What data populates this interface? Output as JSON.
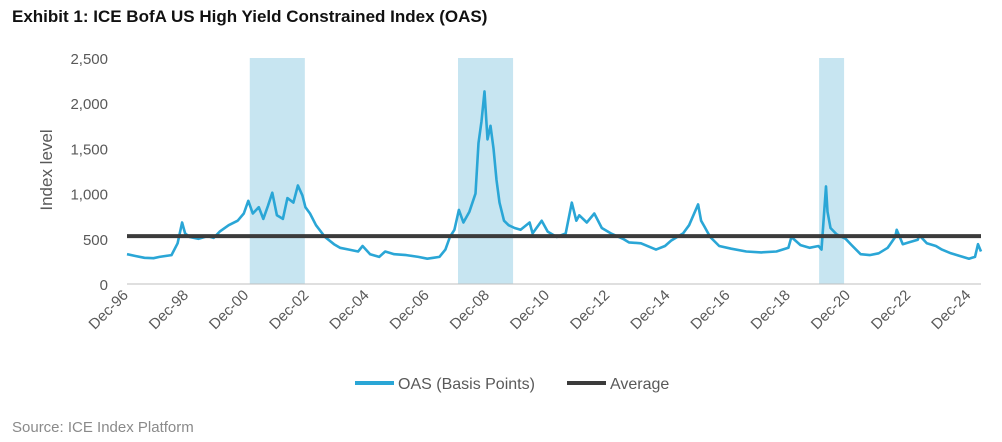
{
  "header": {
    "title": "Exhibit 1: ICE BofA US High Yield Constrained Index (OAS)"
  },
  "footer": {
    "source": "Source: ICE Index Platform"
  },
  "colors": {
    "series": "#2aa6d6",
    "average": "#3b3b3b",
    "shade": "#c7e5f1",
    "axis_text": "#595959"
  },
  "chart_data": {
    "type": "line",
    "title": "Exhibit 1: ICE BofA US High Yield Constrained Index (OAS)",
    "xlabel": "",
    "ylabel": "Index level",
    "ylim": [
      0,
      2500
    ],
    "xlim": [
      1996.92,
      2025.3
    ],
    "yticks": [
      0,
      500,
      1000,
      1500,
      2000,
      2500
    ],
    "ytick_labels": [
      "0",
      "500",
      "1,000",
      "1,500",
      "2,000",
      "2,500"
    ],
    "xticks": [
      1996.92,
      1998.92,
      2000.92,
      2002.92,
      2004.92,
      2006.92,
      2008.92,
      2010.92,
      2012.92,
      2014.92,
      2016.92,
      2018.92,
      2020.92,
      2022.92,
      2024.92
    ],
    "xtick_labels": [
      "Dec-96",
      "Dec-98",
      "Dec-00",
      "Dec-02",
      "Dec-04",
      "Dec-06",
      "Dec-08",
      "Dec-10",
      "Dec-12",
      "Dec-14",
      "Dec-16",
      "Dec-18",
      "Dec-20",
      "Dec-22",
      "Dec-24"
    ],
    "shaded_periods": [
      [
        2001.0,
        2002.83
      ],
      [
        2007.92,
        2009.75
      ],
      [
        2019.92,
        2020.75
      ]
    ],
    "average": 530,
    "legend": {
      "position": "bottom",
      "entries": [
        "OAS (Basis Points)",
        "Average"
      ]
    },
    "series": [
      {
        "name": "OAS (Basis Points)",
        "x": [
          1996.92,
          1997.2,
          1997.5,
          1997.8,
          1998.0,
          1998.4,
          1998.6,
          1998.75,
          1998.85,
          1999.0,
          1999.3,
          1999.6,
          1999.8,
          2000.0,
          2000.3,
          2000.6,
          2000.8,
          2000.95,
          2001.1,
          2001.3,
          2001.45,
          2001.6,
          2001.75,
          2001.9,
          2002.1,
          2002.25,
          2002.45,
          2002.6,
          2002.75,
          2002.85,
          2003.0,
          2003.2,
          2003.5,
          2003.8,
          2004.0,
          2004.3,
          2004.6,
          2004.75,
          2005.0,
          2005.3,
          2005.5,
          2005.8,
          2006.2,
          2006.6,
          2006.9,
          2007.1,
          2007.3,
          2007.5,
          2007.65,
          2007.8,
          2007.95,
          2008.1,
          2008.3,
          2008.5,
          2008.6,
          2008.7,
          2008.8,
          2008.9,
          2009.0,
          2009.1,
          2009.2,
          2009.3,
          2009.45,
          2009.6,
          2009.8,
          2010.0,
          2010.3,
          2010.4,
          2010.7,
          2010.9,
          2011.2,
          2011.5,
          2011.7,
          2011.85,
          2011.95,
          2012.2,
          2012.45,
          2012.7,
          2013.0,
          2013.4,
          2013.6,
          2014.0,
          2014.5,
          2014.8,
          2015.0,
          2015.4,
          2015.6,
          2015.9,
          2016.0,
          2016.1,
          2016.3,
          2016.6,
          2017.0,
          2017.5,
          2018.0,
          2018.5,
          2018.9,
          2019.0,
          2019.3,
          2019.6,
          2019.9,
          2020.0,
          2020.15,
          2020.2,
          2020.3,
          2020.5,
          2020.8,
          2021.0,
          2021.3,
          2021.6,
          2021.9,
          2022.2,
          2022.45,
          2022.5,
          2022.7,
          2022.9,
          2023.2,
          2023.25,
          2023.5,
          2023.8,
          2024.0,
          2024.3,
          2024.6,
          2024.9,
          2025.0,
          2025.1,
          2025.2,
          2025.3
        ],
        "values": [
          330,
          310,
          290,
          285,
          300,
          320,
          450,
          680,
          560,
          520,
          500,
          530,
          510,
          580,
          650,
          700,
          780,
          920,
          780,
          850,
          720,
          860,
          1010,
          760,
          720,
          950,
          900,
          1090,
          980,
          850,
          780,
          650,
          520,
          440,
          400,
          380,
          360,
          420,
          330,
          300,
          360,
          330,
          320,
          300,
          280,
          290,
          300,
          380,
          520,
          600,
          820,
          680,
          800,
          1000,
          1560,
          1800,
          2130,
          1600,
          1750,
          1500,
          1150,
          900,
          700,
          650,
          620,
          600,
          680,
          560,
          700,
          580,
          520,
          560,
          900,
          700,
          760,
          680,
          780,
          620,
          560,
          500,
          460,
          450,
          380,
          420,
          480,
          560,
          650,
          880,
          700,
          640,
          520,
          420,
          390,
          360,
          350,
          360,
          400,
          520,
          430,
          400,
          420,
          380,
          1080,
          800,
          620,
          550,
          500,
          430,
          330,
          320,
          340,
          400,
          520,
          600,
          440,
          460,
          490,
          540,
          450,
          420,
          380,
          340,
          310,
          280,
          290,
          300,
          440,
          360
        ]
      }
    ]
  }
}
